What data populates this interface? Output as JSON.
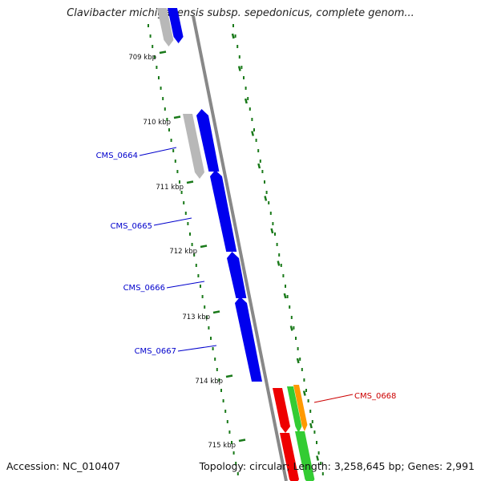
{
  "title": "Clavibacter michiganensis subsp. sepedonicus, complete genom...",
  "footer": {
    "accession": "Accession: NC_010407",
    "summary": "Topology: circular; Length: 3,258,645 bp; Genes: 2,991"
  },
  "colors": {
    "backbone": "#888888",
    "tick": "#1a7a1a",
    "forward_gene": "#0000ee",
    "reverse_gene": "#ee0000",
    "orange_gene": "#ff9900",
    "green_gene": "#33cc33",
    "gray_gene": "#b8b8b8"
  },
  "tick_labels": [
    "709 kbp",
    "710 kbp",
    "711 kbp",
    "712 kbp",
    "713 kbp",
    "714 kbp",
    "715 kbp"
  ],
  "gene_labels": [
    {
      "text": "CMS_0664",
      "color": "#0000cc"
    },
    {
      "text": "CMS_0665",
      "color": "#0000cc"
    },
    {
      "text": "CMS_0666",
      "color": "#0000cc"
    },
    {
      "text": "CMS_0667",
      "color": "#0000cc"
    },
    {
      "text": "CMS_0668",
      "color": "#cc0000"
    }
  ]
}
